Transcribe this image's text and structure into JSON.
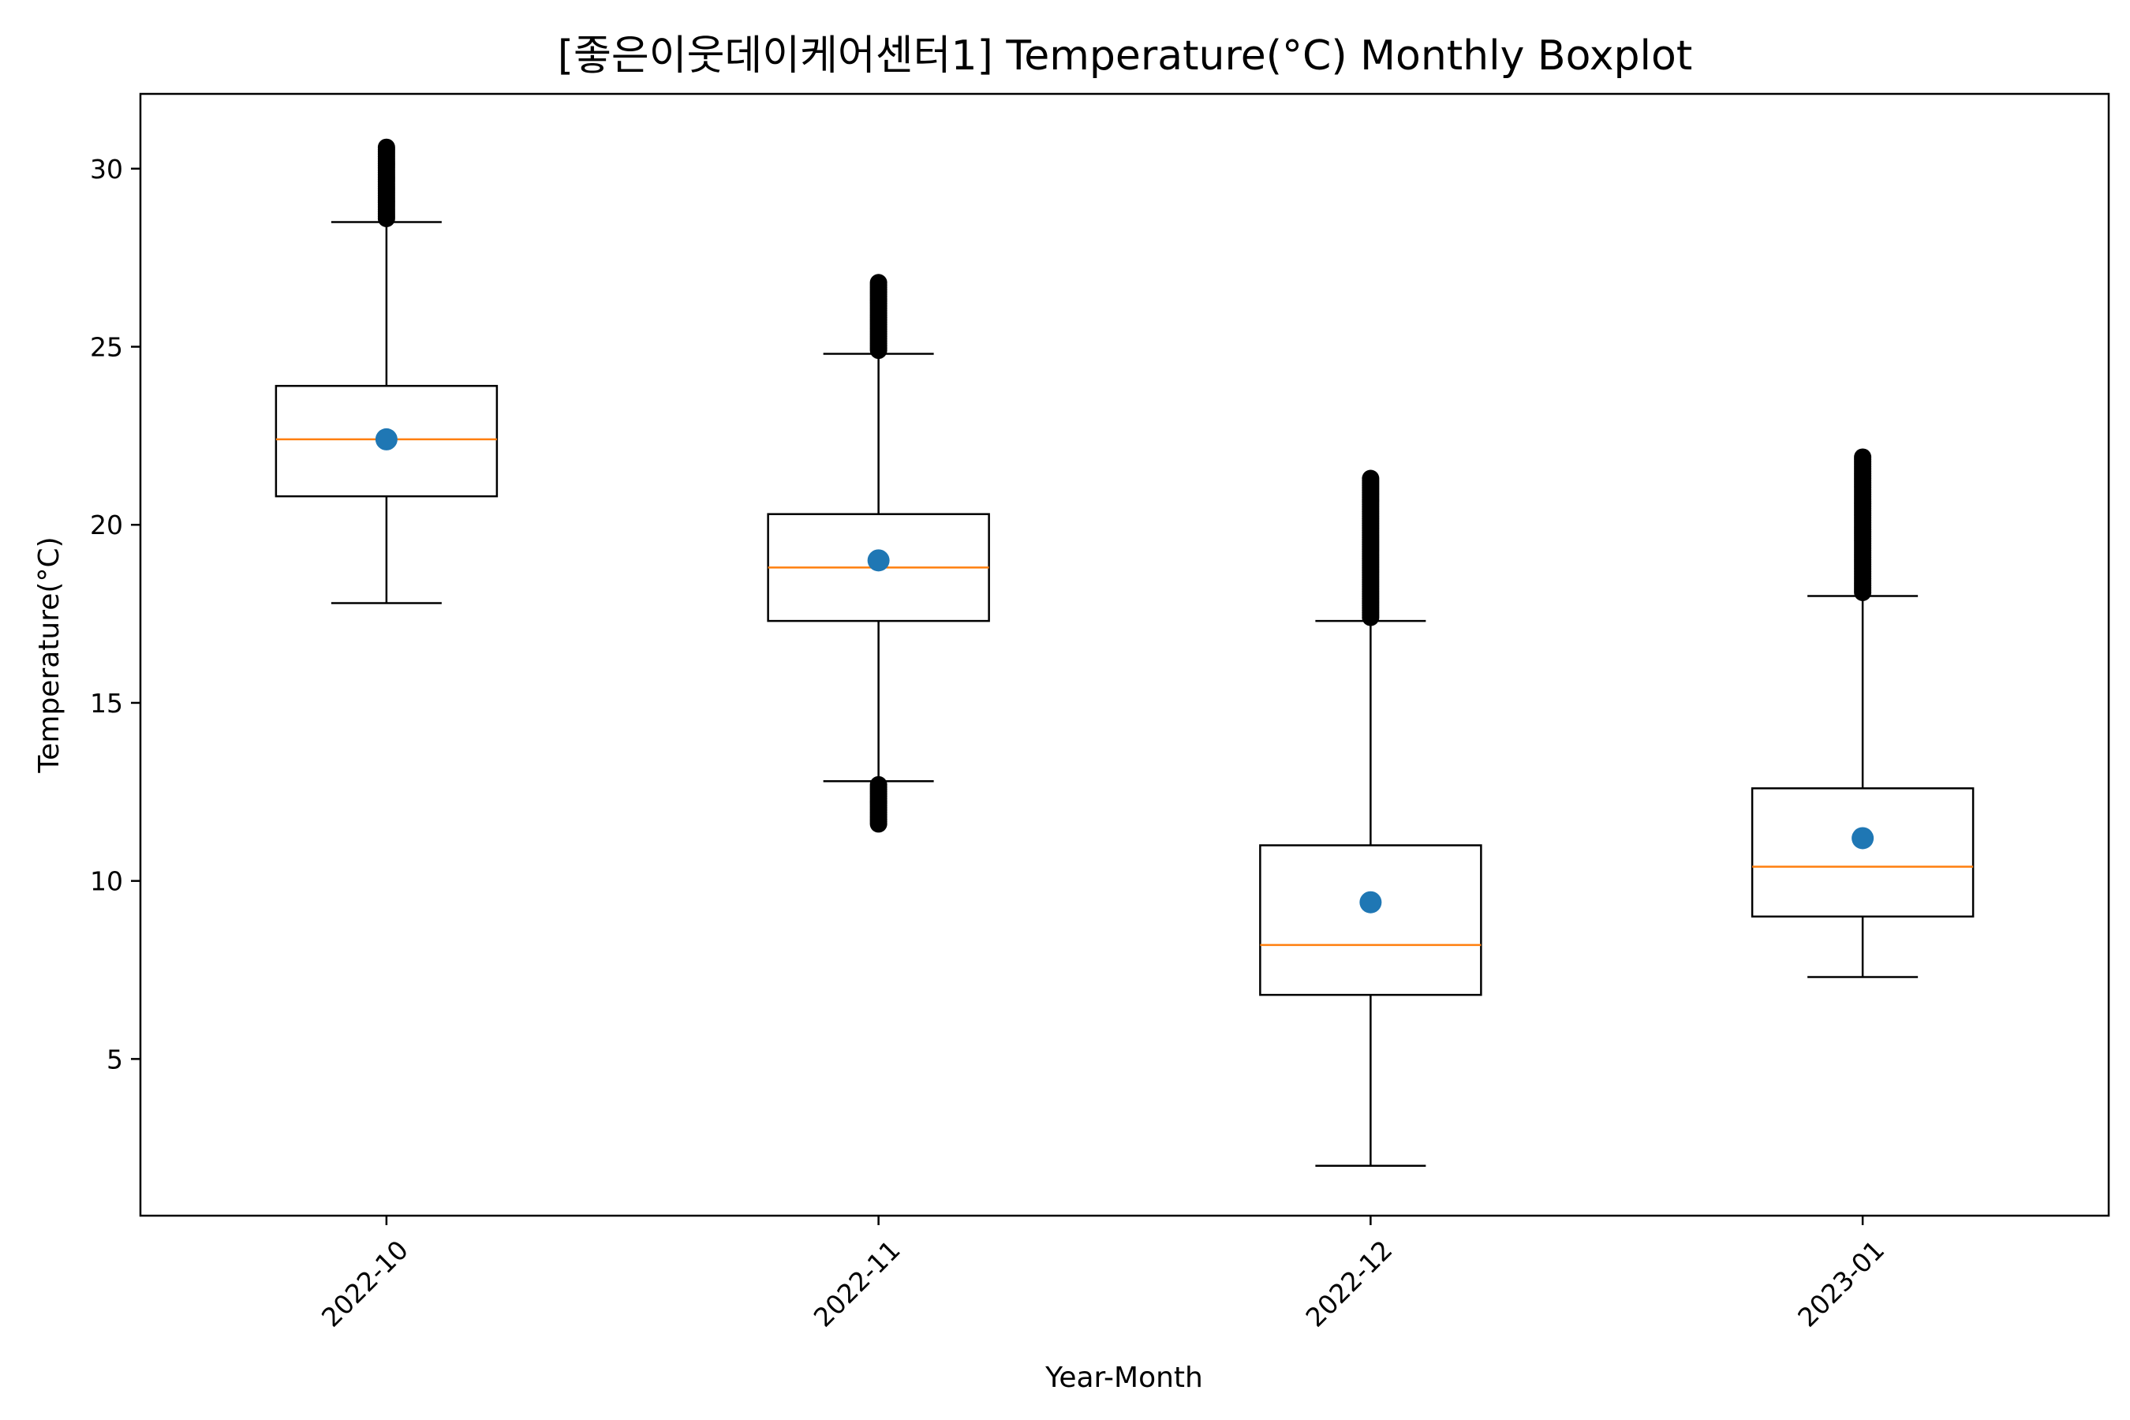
{
  "chart_data": {
    "type": "boxplot",
    "title": "[좋은이웃데이케어센터1] Temperature(°C) Monthly Boxplot",
    "xlabel": "Year-Month",
    "ylabel": "Temperature(°C)",
    "ylim": [
      0.6,
      32.1
    ],
    "yticks": [
      5,
      10,
      15,
      20,
      25,
      30
    ],
    "categories": [
      "2022-10",
      "2022-11",
      "2022-12",
      "2023-01"
    ],
    "boxes": [
      {
        "category": "2022-10",
        "whisker_low": 17.8,
        "q1": 20.8,
        "median": 22.4,
        "q3": 23.9,
        "whisker_high": 28.5,
        "mean": 22.4,
        "outliers_low": [],
        "outliers_high": [
          28.6,
          30.6
        ]
      },
      {
        "category": "2022-11",
        "whisker_low": 12.8,
        "q1": 17.3,
        "median": 18.8,
        "q3": 20.3,
        "whisker_high": 24.8,
        "mean": 19.0,
        "outliers_low": [
          11.6,
          12.7
        ],
        "outliers_high": [
          24.9,
          26.8
        ]
      },
      {
        "category": "2022-12",
        "whisker_low": 2.0,
        "q1": 6.8,
        "median": 8.2,
        "q3": 11.0,
        "whisker_high": 17.3,
        "mean": 9.4,
        "outliers_low": [],
        "outliers_high": [
          17.4,
          21.3
        ]
      },
      {
        "category": "2023-01",
        "whisker_low": 7.3,
        "q1": 9.0,
        "median": 10.4,
        "q3": 12.6,
        "whisker_high": 18.0,
        "mean": 11.2,
        "outliers_low": [],
        "outliers_high": [
          18.1,
          21.9
        ]
      }
    ],
    "grid": false,
    "colors": {
      "box": "#000000",
      "median": "#ff7f0e",
      "mean": "#1f77b4",
      "outlier": "#000000"
    }
  }
}
